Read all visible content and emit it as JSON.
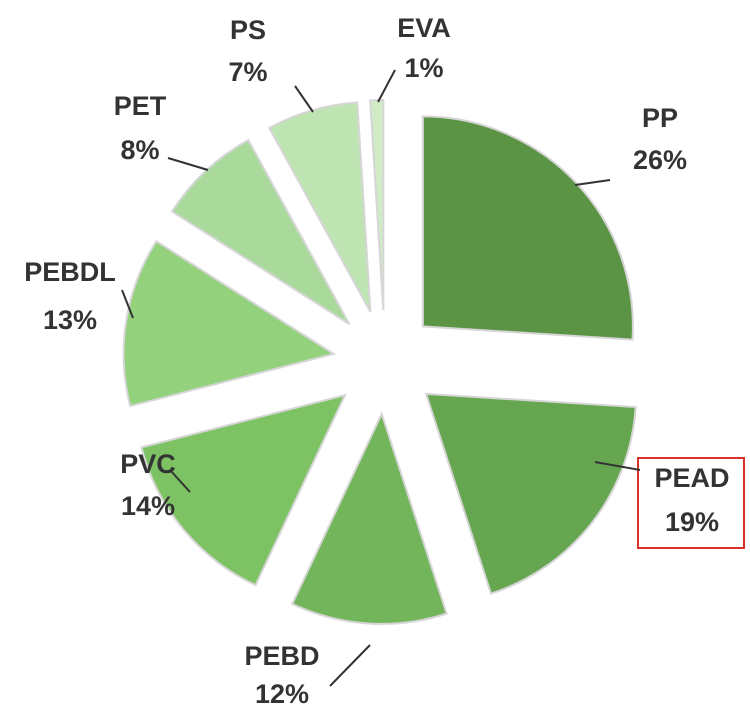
{
  "chart_data": {
    "type": "pie",
    "categories": [
      "PP",
      "PEAD",
      "PEBD",
      "PVC",
      "PEBDL",
      "PET",
      "PS",
      "EVA"
    ],
    "values": [
      26,
      19,
      12,
      14,
      13,
      8,
      7,
      1
    ],
    "value_labels": [
      "26%",
      "19%",
      "12%",
      "14%",
      "13%",
      "8%",
      "7%",
      "1%"
    ],
    "colors": [
      "#5b9445",
      "#67a651",
      "#72b55b",
      "#7dc364",
      "#93d17c",
      "#a9da9b",
      "#bee4b2",
      "#cfecc6"
    ]
  }
}
